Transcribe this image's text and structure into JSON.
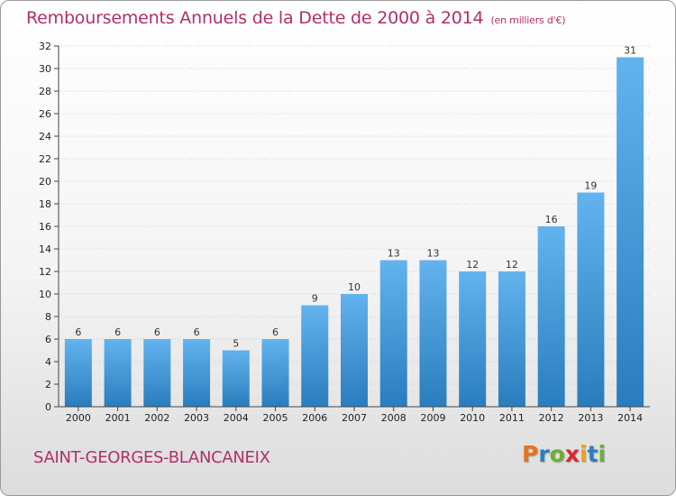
{
  "title": "Remboursements Annuels de la Dette de 2000 à 2014",
  "title_unit": "(en milliers d'€)",
  "commune": "SAINT-GEORGES-BLANCANEIX",
  "logo": {
    "letters": [
      "P",
      "r",
      "o",
      "x",
      "i",
      "t",
      "i"
    ],
    "colors": [
      "#e8731a",
      "#2e7dc1",
      "#6ab02c",
      "#d52b2b",
      "#e8a21a",
      "#2e7dc1",
      "#6ab02c"
    ]
  },
  "colors": {
    "title": "#b0306a",
    "bar_top": "#62b3ee",
    "bar_bottom": "#2a7dbd",
    "grid": "#cfcfcf"
  },
  "chart_data": {
    "type": "bar",
    "title": "Remboursements Annuels de la Dette de 2000 à 2014",
    "categories": [
      "2000",
      "2001",
      "2002",
      "2003",
      "2004",
      "2005",
      "2006",
      "2007",
      "2008",
      "2009",
      "2010",
      "2011",
      "2012",
      "2013",
      "2014"
    ],
    "values": [
      6,
      6,
      6,
      6,
      5,
      6,
      9,
      10,
      13,
      13,
      12,
      12,
      16,
      19,
      31
    ],
    "ylim": [
      0,
      32
    ],
    "yticks": [
      0,
      2,
      4,
      6,
      8,
      10,
      12,
      14,
      16,
      18,
      20,
      22,
      24,
      26,
      28,
      30,
      32
    ],
    "grid": true,
    "data_labels": true
  }
}
